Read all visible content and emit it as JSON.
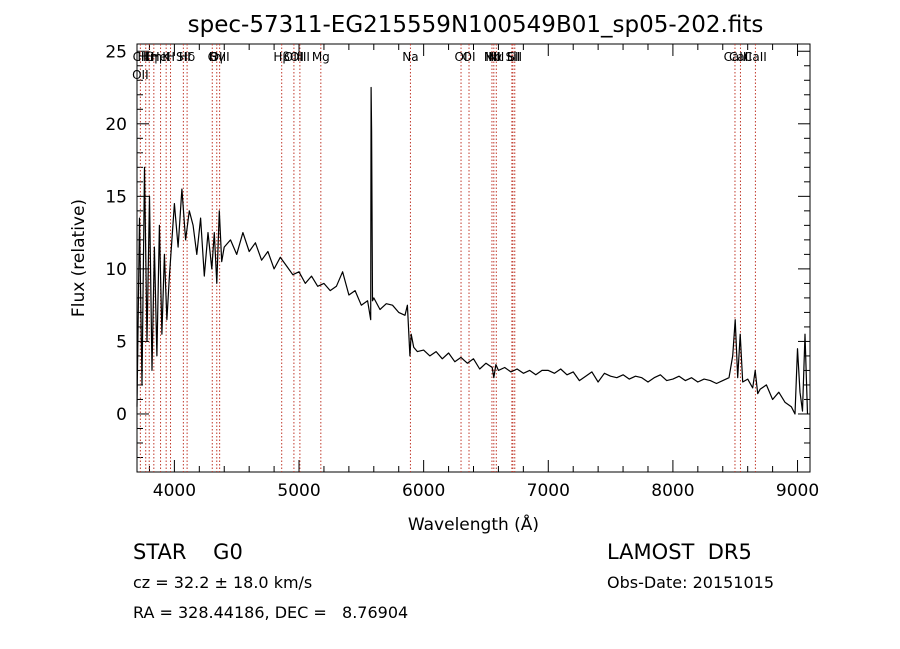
{
  "chart_data": {
    "type": "line",
    "title": "spec-57311-EG215559N100549B01_sp05-202.fits",
    "xlabel": "Wavelength (Å)",
    "ylabel": "Flux (relative)",
    "xlim": [
      3700,
      9100
    ],
    "ylim": [
      -4,
      25.5
    ],
    "xticks": [
      4000,
      5000,
      6000,
      7000,
      8000,
      9000
    ],
    "yticks": [
      0,
      5,
      10,
      15,
      20,
      25
    ],
    "grid": false,
    "series": [
      {
        "x": [
          3700,
          3720,
          3740,
          3760,
          3780,
          3800,
          3820,
          3840,
          3860,
          3880,
          3900,
          3920,
          3940,
          3960,
          3980,
          4000,
          4030,
          4060,
          4090,
          4120,
          4150,
          4180,
          4210,
          4240,
          4270,
          4300,
          4320,
          4340,
          4360,
          4380,
          4400,
          4450,
          4500,
          4550,
          4600,
          4650,
          4700,
          4750,
          4800,
          4850,
          4900,
          4950,
          5000,
          5050,
          5100,
          5150,
          5200,
          5250,
          5300,
          5350,
          5400,
          5450,
          5500,
          5550,
          5575,
          5578,
          5582,
          5590,
          5600,
          5650,
          5700,
          5750,
          5800,
          5850,
          5870,
          5890,
          5900,
          5920,
          5950,
          6000,
          6050,
          6100,
          6150,
          6200,
          6250,
          6300,
          6350,
          6400,
          6450,
          6500,
          6550,
          6563,
          6580,
          6600,
          6650,
          6700,
          6750,
          6800,
          6850,
          6900,
          6950,
          7000,
          7050,
          7100,
          7150,
          7200,
          7250,
          7300,
          7350,
          7400,
          7450,
          7500,
          7550,
          7600,
          7650,
          7700,
          7750,
          7800,
          7850,
          7900,
          7950,
          8000,
          8050,
          8100,
          8150,
          8200,
          8250,
          8300,
          8350,
          8400,
          8450,
          8480,
          8500,
          8520,
          8540,
          8560,
          8600,
          8640,
          8660,
          8680,
          8700,
          8750,
          8800,
          8850,
          8900,
          8950,
          8980,
          9000,
          9020,
          9040,
          9060,
          9080
        ],
        "y": [
          0.5,
          13.5,
          2.0,
          17.0,
          5.0,
          15.0,
          3.0,
          11.5,
          4.0,
          13.0,
          5.5,
          11.0,
          6.5,
          9.5,
          12.0,
          14.5,
          11.5,
          15.5,
          12.0,
          14.0,
          13.0,
          11.0,
          13.5,
          9.5,
          12.5,
          10.0,
          12.5,
          9.0,
          14.0,
          10.5,
          11.5,
          12.0,
          11.0,
          12.5,
          11.2,
          11.8,
          10.6,
          11.2,
          10.0,
          10.8,
          10.2,
          9.6,
          9.8,
          9.0,
          9.5,
          8.8,
          9.0,
          8.5,
          8.8,
          9.8,
          8.2,
          8.5,
          7.5,
          7.8,
          6.5,
          22.5,
          19.5,
          7.8,
          8.0,
          7.2,
          7.6,
          7.5,
          7.0,
          6.8,
          7.5,
          4.0,
          5.5,
          4.6,
          4.3,
          4.4,
          4.0,
          4.3,
          3.8,
          4.2,
          3.6,
          3.9,
          3.5,
          3.8,
          3.1,
          3.5,
          3.2,
          2.5,
          3.4,
          3.0,
          3.2,
          2.9,
          3.1,
          2.8,
          3.0,
          2.7,
          3.0,
          3.0,
          2.8,
          3.1,
          2.7,
          2.9,
          2.3,
          2.6,
          2.9,
          2.2,
          2.8,
          2.6,
          2.5,
          2.7,
          2.4,
          2.6,
          2.5,
          2.2,
          2.5,
          2.7,
          2.3,
          2.4,
          2.6,
          2.3,
          2.5,
          2.2,
          2.4,
          2.3,
          2.1,
          2.3,
          2.5,
          4.0,
          6.5,
          2.5,
          5.5,
          2.2,
          2.4,
          1.8,
          3.0,
          1.4,
          1.7,
          2.0,
          1.0,
          1.5,
          0.8,
          0.5,
          0.0,
          4.5,
          1.5,
          0.2,
          5.5,
          0.0
        ]
      }
    ],
    "lines": [
      {
        "x": 3727,
        "labels": [
          "CII",
          "OII"
        ]
      },
      {
        "x": 3770,
        "labels": [
          "Hθ"
        ]
      },
      {
        "x": 3798,
        "labels": [
          "Hη"
        ]
      },
      {
        "x": 3835,
        "labels": [
          "Hη"
        ]
      },
      {
        "x": 3889,
        "labels": [
          "HeI"
        ]
      },
      {
        "x": 3934,
        "labels": [
          "K"
        ]
      },
      {
        "x": 3969,
        "labels": [
          "H"
        ]
      },
      {
        "x": 4072,
        "labels": [
          "SII"
        ]
      },
      {
        "x": 4102,
        "labels": [
          "Hδ"
        ]
      },
      {
        "x": 4304,
        "labels": [
          "G"
        ]
      },
      {
        "x": 4340,
        "labels": [
          "Hγ"
        ]
      },
      {
        "x": 4363,
        "labels": [
          "OIII"
        ]
      },
      {
        "x": 4861,
        "labels": [
          "Hβ"
        ]
      },
      {
        "x": 4959,
        "labels": [
          "OIII"
        ]
      },
      {
        "x": 5007,
        "labels": [
          "OIII"
        ]
      },
      {
        "x": 5175,
        "labels": [
          "Mg"
        ]
      },
      {
        "x": 5894,
        "labels": [
          "Na"
        ]
      },
      {
        "x": 6300,
        "labels": [
          "OI"
        ]
      },
      {
        "x": 6364,
        "labels": [
          "OI"
        ]
      },
      {
        "x": 6548,
        "labels": [
          "NII"
        ]
      },
      {
        "x": 6563,
        "labels": [
          "Hα"
        ]
      },
      {
        "x": 6583,
        "labels": [
          "NII"
        ]
      },
      {
        "x": 6708,
        "labels": [
          "Li"
        ]
      },
      {
        "x": 6716,
        "labels": [
          "SII"
        ]
      },
      {
        "x": 6731,
        "labels": [
          "SII"
        ]
      },
      {
        "x": 8498,
        "labels": [
          "CaII"
        ]
      },
      {
        "x": 8542,
        "labels": [
          "CaII"
        ]
      },
      {
        "x": 8662,
        "labels": [
          "CaII"
        ]
      }
    ],
    "line_color": "#c0392b"
  },
  "info": {
    "class_line": "STAR    G0",
    "survey": "LAMOST  DR5",
    "cz": "cz = 32.2 ± 18.0 km/s",
    "obs_date": "Obs-Date: 20151015",
    "coords": "RA = 328.44186, DEC =   8.76904"
  }
}
